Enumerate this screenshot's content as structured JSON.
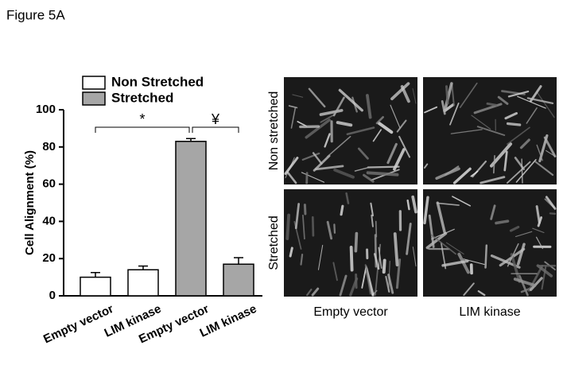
{
  "figure_label": "Figure 5A",
  "chart_data": {
    "type": "bar",
    "y_label": "Cell Alignment (%)",
    "categories": [
      "Empty vector",
      "LIM kinase",
      "Empty vector",
      "LIM kinase"
    ],
    "series": [
      {
        "name": "Non Stretched",
        "color": "#ffffff",
        "values": [
          10,
          14,
          null,
          null
        ],
        "errors": [
          2.5,
          2,
          null,
          null
        ]
      },
      {
        "name": "Stretched",
        "color": "#a6a6a6",
        "values": [
          null,
          null,
          83,
          17
        ],
        "errors": [
          null,
          null,
          1.5,
          3.5
        ]
      }
    ],
    "ylim": [
      0,
      100
    ],
    "yticks": [
      0,
      20,
      40,
      60,
      80,
      100
    ],
    "annotations": [
      "*",
      "¥"
    ]
  },
  "panel": {
    "row_labels": [
      "Non stretched",
      "Stretched"
    ],
    "col_labels": [
      "Empty vector",
      "LIM kinase"
    ]
  }
}
